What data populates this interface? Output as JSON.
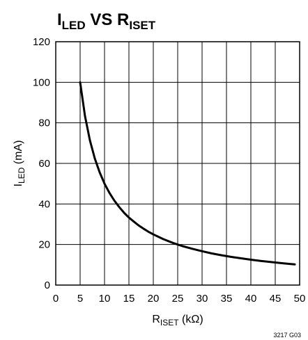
{
  "chart_data": {
    "type": "line",
    "title": {
      "main": "I",
      "main_sub": "LED",
      "vs": " VS ",
      "second": "R",
      "second_sub": "ISET"
    },
    "xlabel": {
      "main": "R",
      "sub": "ISET",
      "unit": " (kΩ)"
    },
    "ylabel": {
      "main": "I",
      "sub": "LED",
      "unit": " (mA)"
    },
    "xlim": [
      0,
      50
    ],
    "ylim": [
      0,
      120
    ],
    "x_ticks": [
      "0",
      "5",
      "10",
      "15",
      "20",
      "25",
      "30",
      "35",
      "40",
      "45",
      "50"
    ],
    "y_ticks": [
      "0",
      "20",
      "40",
      "60",
      "80",
      "100",
      "120"
    ],
    "grid": true,
    "series": [
      {
        "x": [
          5,
          6,
          7,
          8,
          9,
          10,
          11,
          12,
          13,
          14,
          15,
          16,
          17,
          18,
          19,
          20,
          22,
          24,
          25,
          26,
          28,
          30,
          32,
          34,
          36,
          38,
          40,
          42,
          44,
          46,
          48,
          49
        ],
        "y": [
          100,
          83.3,
          71.4,
          62.5,
          55.6,
          50,
          45.5,
          41.7,
          38.5,
          35.7,
          33.3,
          31.3,
          29.4,
          27.8,
          26.3,
          25,
          22.7,
          20.8,
          20,
          19.2,
          17.9,
          16.7,
          15.6,
          14.7,
          13.9,
          13.2,
          12.5,
          11.9,
          11.4,
          10.9,
          10.4,
          10.2
        ]
      }
    ],
    "figure_code": "3217 G03"
  }
}
